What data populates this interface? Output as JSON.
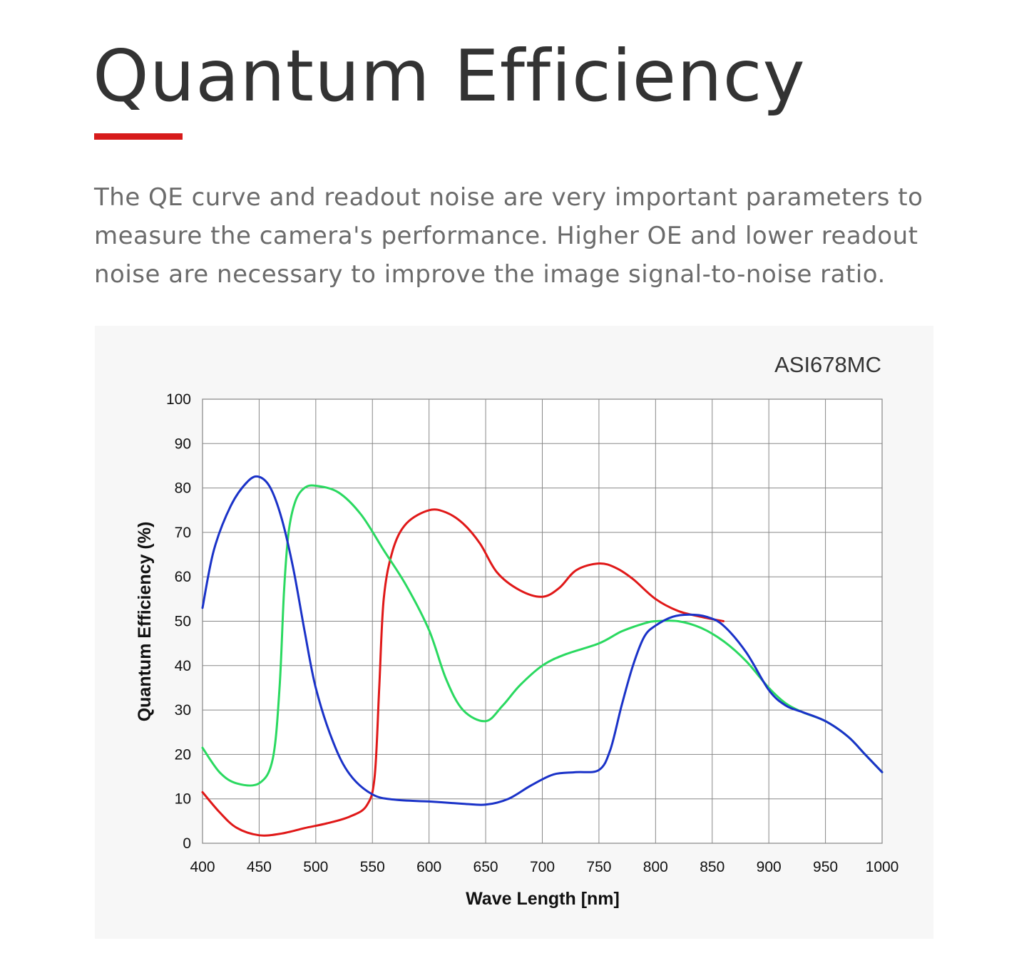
{
  "page": {
    "title": "Quantum Efficiency",
    "intro": "The QE curve and readout noise are very important parameters to measure the camera's performance. Higher OE and lower readout noise are necessary to improve the image signal-to-noise ratio.",
    "accent_color": "#d71b1b"
  },
  "chart_data": {
    "type": "line",
    "title": "ASI678MC",
    "xlabel": "Wave Length [nm]",
    "ylabel": "Quantum Efficiency (%)",
    "xlim": [
      400,
      1000
    ],
    "ylim": [
      0,
      100
    ],
    "xticks": [
      400,
      450,
      500,
      550,
      600,
      650,
      700,
      750,
      800,
      850,
      900,
      950,
      1000
    ],
    "yticks": [
      0,
      10,
      20,
      30,
      40,
      50,
      60,
      70,
      80,
      90,
      100
    ],
    "grid": true,
    "series": [
      {
        "color": "#e01818",
        "x": [
          400,
          415,
          430,
          450,
          470,
          490,
          510,
          530,
          545,
          552,
          556,
          560,
          568,
          580,
          600,
          615,
          630,
          645,
          660,
          680,
          700,
          715,
          730,
          750,
          765,
          780,
          800,
          820,
          840,
          860
        ],
        "y": [
          11.5,
          7,
          3.5,
          1.8,
          2.2,
          3.4,
          4.5,
          6,
          8.5,
          15,
          35,
          55,
          66,
          72,
          75,
          74.5,
          72,
          67.5,
          61,
          57,
          55.5,
          57.5,
          61.5,
          63,
          62,
          59.5,
          55,
          52.3,
          51,
          50
        ]
      },
      {
        "color": "#2ad960",
        "x": [
          400,
          415,
          430,
          450,
          462,
          468,
          472,
          476,
          482,
          490,
          500,
          520,
          540,
          560,
          580,
          600,
          615,
          630,
          650,
          665,
          680,
          700,
          720,
          750,
          770,
          790,
          800,
          820,
          840,
          860,
          880,
          900,
          915,
          930,
          950,
          970,
          985,
          1000
        ],
        "y": [
          21.5,
          16,
          13.5,
          13.5,
          19,
          35,
          57,
          70,
          77,
          80,
          80.5,
          79,
          74,
          66,
          58,
          48,
          37,
          30,
          27.5,
          31,
          35.5,
          40,
          42.5,
          45,
          47.7,
          49.5,
          50,
          50,
          48.5,
          45.5,
          41,
          35,
          31.5,
          29.5,
          27.5,
          24,
          20,
          16
        ]
      },
      {
        "color": "#1a32c8",
        "x": [
          400,
          410,
          425,
          440,
          450,
          460,
          470,
          480,
          490,
          500,
          515,
          530,
          550,
          570,
          600,
          630,
          650,
          670,
          690,
          710,
          730,
          750,
          760,
          770,
          780,
          790,
          800,
          815,
          830,
          845,
          860,
          880,
          900,
          915,
          930,
          950,
          970,
          985,
          1000
        ],
        "y": [
          53,
          66,
          76,
          81.5,
          82.5,
          80,
          73,
          62,
          48,
          35,
          23,
          15.5,
          11,
          9.8,
          9.4,
          8.9,
          8.7,
          10,
          13,
          15.5,
          16,
          16.5,
          21,
          31,
          40,
          46.5,
          49,
          51,
          51.5,
          51,
          49,
          43,
          34.5,
          31,
          29.5,
          27.5,
          24,
          20,
          16
        ]
      }
    ]
  }
}
